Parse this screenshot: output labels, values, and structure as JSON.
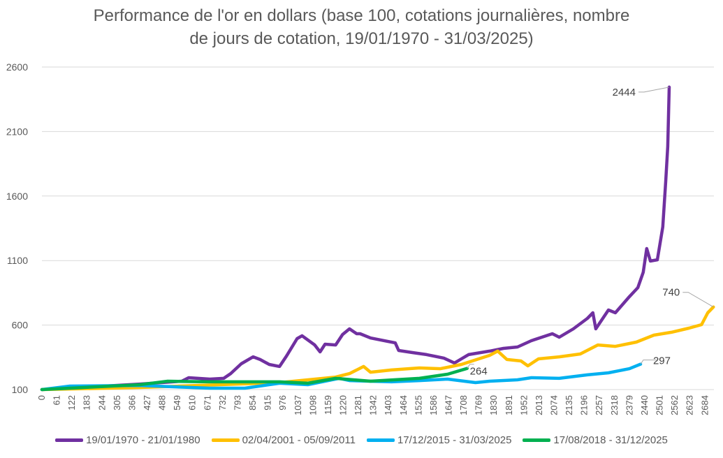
{
  "chart_data": {
    "type": "line",
    "title_lines": [
      "Performance de l'or en dollars (base 100, cotations journalières, nombre",
      "de jours de cotation, 19/01/1970 - 31/03/2025)"
    ],
    "xlabel": "",
    "ylabel": "",
    "xlim": [
      0,
      2720
    ],
    "ylim": [
      100,
      2600
    ],
    "yticks": [
      100,
      600,
      1100,
      1600,
      2100,
      2600
    ],
    "xticks": [
      0,
      61,
      122,
      183,
      244,
      305,
      366,
      427,
      488,
      549,
      610,
      671,
      732,
      793,
      854,
      915,
      976,
      1037,
      1098,
      1159,
      1220,
      1281,
      1342,
      1403,
      1464,
      1525,
      1586,
      1647,
      1708,
      1769,
      1830,
      1891,
      1952,
      2013,
      2074,
      2135,
      2196,
      2257,
      2318,
      2379,
      2440,
      2501,
      2562,
      2623,
      2684
    ],
    "grid": true,
    "legend_position": "bottom",
    "series": [
      {
        "name": "19/01/1970 - 21/01/1980",
        "color": "#7030a0",
        "end_label": "2444",
        "points": [
          [
            0,
            100
          ],
          [
            255,
            127
          ],
          [
            396,
            143
          ],
          [
            566,
            165
          ],
          [
            594,
            192
          ],
          [
            680,
            181
          ],
          [
            736,
            187
          ],
          [
            764,
            224
          ],
          [
            807,
            300
          ],
          [
            855,
            354
          ],
          [
            883,
            333
          ],
          [
            920,
            295
          ],
          [
            962,
            279
          ],
          [
            990,
            360
          ],
          [
            1033,
            495
          ],
          [
            1053,
            517
          ],
          [
            1104,
            446
          ],
          [
            1126,
            392
          ],
          [
            1146,
            452
          ],
          [
            1189,
            446
          ],
          [
            1217,
            527
          ],
          [
            1245,
            571
          ],
          [
            1274,
            533
          ],
          [
            1288,
            533
          ],
          [
            1330,
            500
          ],
          [
            1401,
            473
          ],
          [
            1430,
            462
          ],
          [
            1444,
            403
          ],
          [
            1500,
            387
          ],
          [
            1557,
            371
          ],
          [
            1627,
            344
          ],
          [
            1670,
            306
          ],
          [
            1698,
            338
          ],
          [
            1727,
            371
          ],
          [
            1812,
            398
          ],
          [
            1868,
            419
          ],
          [
            1925,
            430
          ],
          [
            1981,
            479
          ],
          [
            2066,
            533
          ],
          [
            2094,
            506
          ],
          [
            2151,
            571
          ],
          [
            2208,
            652
          ],
          [
            2230,
            695
          ],
          [
            2242,
            571
          ],
          [
            2293,
            717
          ],
          [
            2321,
            695
          ],
          [
            2378,
            820
          ],
          [
            2412,
            890
          ],
          [
            2434,
            1009
          ],
          [
            2448,
            1193
          ],
          [
            2463,
            1096
          ],
          [
            2491,
            1106
          ],
          [
            2513,
            1361
          ],
          [
            2525,
            1713
          ],
          [
            2533,
            1983
          ],
          [
            2539,
            2444
          ]
        ]
      },
      {
        "name": "02/04/2001 - 05/09/2011",
        "color": "#ffc000",
        "end_label": "740",
        "points": [
          [
            0,
            100
          ],
          [
            396,
            116
          ],
          [
            962,
            154
          ],
          [
            1189,
            197
          ],
          [
            1245,
            224
          ],
          [
            1302,
            279
          ],
          [
            1330,
            235
          ],
          [
            1415,
            252
          ],
          [
            1528,
            268
          ],
          [
            1613,
            262
          ],
          [
            1698,
            295
          ],
          [
            1812,
            365
          ],
          [
            1845,
            398
          ],
          [
            1882,
            333
          ],
          [
            1939,
            322
          ],
          [
            1967,
            284
          ],
          [
            2010,
            338
          ],
          [
            2094,
            354
          ],
          [
            2179,
            376
          ],
          [
            2250,
            446
          ],
          [
            2321,
            435
          ],
          [
            2406,
            468
          ],
          [
            2477,
            522
          ],
          [
            2548,
            544
          ],
          [
            2619,
            576
          ],
          [
            2670,
            603
          ],
          [
            2695,
            695
          ],
          [
            2718,
            740
          ]
        ]
      },
      {
        "name": "17/12/2015 - 31/03/2025",
        "color": "#00b0f0",
        "end_label": "297",
        "points": [
          [
            0,
            100
          ],
          [
            113,
            127
          ],
          [
            396,
            132
          ],
          [
            680,
            111
          ],
          [
            821,
            111
          ],
          [
            962,
            149
          ],
          [
            1076,
            138
          ],
          [
            1203,
            187
          ],
          [
            1245,
            170
          ],
          [
            1415,
            160
          ],
          [
            1528,
            170
          ],
          [
            1642,
            181
          ],
          [
            1755,
            154
          ],
          [
            1812,
            165
          ],
          [
            1925,
            176
          ],
          [
            1981,
            192
          ],
          [
            2094,
            187
          ],
          [
            2208,
            214
          ],
          [
            2293,
            230
          ],
          [
            2378,
            262
          ],
          [
            2423,
            297
          ]
        ]
      },
      {
        "name": "17/08/2018 - 31/12/2025",
        "color": "#00b050",
        "end_label": "264",
        "points": [
          [
            0,
            100
          ],
          [
            396,
            138
          ],
          [
            509,
            165
          ],
          [
            680,
            160
          ],
          [
            962,
            160
          ],
          [
            1076,
            149
          ],
          [
            1189,
            187
          ],
          [
            1330,
            165
          ],
          [
            1528,
            187
          ],
          [
            1642,
            219
          ],
          [
            1721,
            264
          ]
        ]
      }
    ]
  }
}
